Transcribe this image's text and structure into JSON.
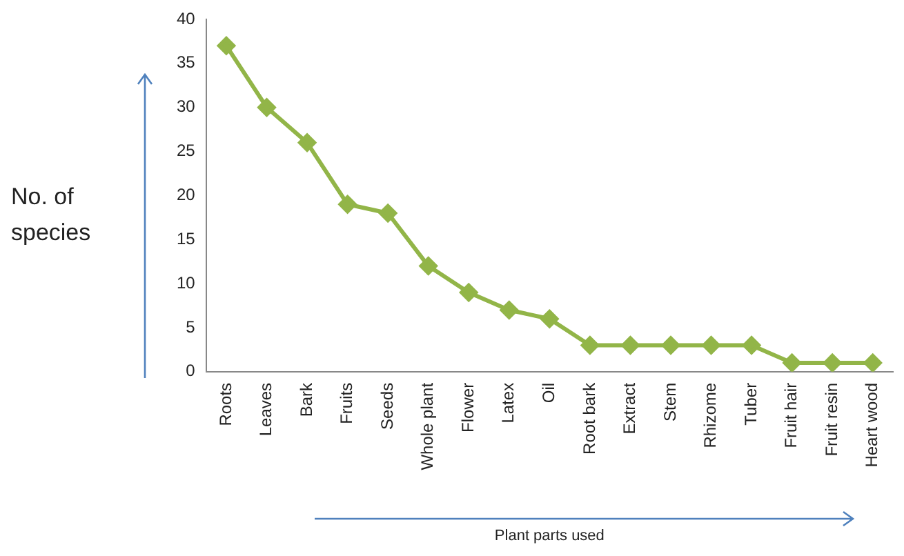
{
  "chart_data": {
    "type": "line",
    "ylabel": "No. of species",
    "xlabel": "Plant parts used",
    "categories": [
      "Roots",
      "Leaves",
      "Bark",
      "Fruits",
      "Seeds",
      "Whole plant",
      "Flower",
      "Latex",
      "Oil",
      "Root bark",
      "Extract",
      "Stem",
      "Rhizome",
      "Tuber",
      "Fruit hair",
      "Fruit resin",
      "Heart wood"
    ],
    "series": [
      {
        "color": "#92b548",
        "values": [
          37,
          30,
          26,
          19,
          18,
          12,
          9,
          7,
          6,
          3,
          3,
          3,
          3,
          3,
          1,
          1,
          1
        ]
      }
    ],
    "ylim": [
      0,
      40
    ],
    "yticks": [
      0,
      5,
      10,
      15,
      20,
      25,
      30,
      35,
      40
    ],
    "grid": false,
    "legend": false,
    "marker": "diamond",
    "line_style": "solid"
  }
}
